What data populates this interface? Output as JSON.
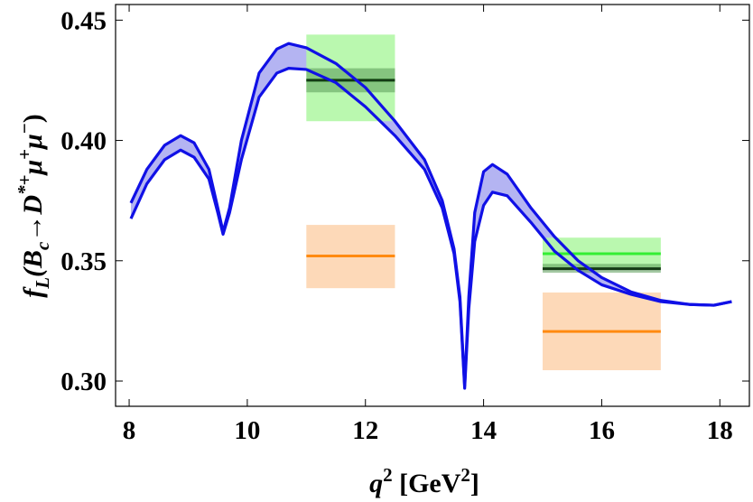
{
  "chart_data": {
    "type": "band",
    "xlabel": [
      "q",
      "2",
      " [GeV",
      "2",
      "]"
    ],
    "ylabel": [
      "f",
      "L",
      "(B",
      "c",
      "→D",
      "*+",
      "μ",
      "+",
      "μ",
      "−",
      ")"
    ],
    "xlim": [
      7.77,
      18.5
    ],
    "ylim": [
      0.2895,
      0.4565
    ],
    "xticks": [
      8,
      10,
      12,
      14,
      16,
      18
    ],
    "yticks": [
      {
        "value": 0.3,
        "label": "0.30"
      },
      0.35,
      {
        "value": 0.4,
        "label": "0.40"
      },
      0.45
    ],
    "band_fill": "#b4b4f2",
    "x": [
      8.03,
      8.3,
      8.6,
      8.87,
      9.1,
      9.35,
      9.5,
      9.59,
      9.7,
      9.9,
      10.2,
      10.5,
      10.7,
      11.0,
      11.5,
      12.0,
      12.5,
      13.0,
      13.3,
      13.5,
      13.6,
      13.68,
      13.75,
      13.85,
      14.0,
      14.15,
      14.4,
      14.8,
      15.2,
      15.6,
      16.0,
      16.5,
      17.0,
      17.5,
      17.9,
      18.2
    ],
    "series": [
      {
        "color": "#1010e6",
        "values": [
          0.374,
          0.388,
          0.398,
          0.402,
          0.399,
          0.388,
          0.372,
          0.362,
          0.372,
          0.4,
          0.428,
          0.438,
          0.4403,
          0.4385,
          0.432,
          0.422,
          0.408,
          0.392,
          0.375,
          0.355,
          0.335,
          0.298,
          0.335,
          0.37,
          0.387,
          0.39,
          0.386,
          0.372,
          0.36,
          0.35,
          0.343,
          0.337,
          0.3335,
          0.3318,
          0.3315,
          0.333
        ]
      },
      {
        "color": "#1010e6",
        "values": [
          0.3675,
          0.382,
          0.392,
          0.396,
          0.393,
          0.384,
          0.37,
          0.361,
          0.37,
          0.392,
          0.418,
          0.428,
          0.43,
          0.4295,
          0.424,
          0.414,
          0.402,
          0.388,
          0.372,
          0.353,
          0.333,
          0.297,
          0.33,
          0.358,
          0.373,
          0.3785,
          0.377,
          0.366,
          0.354,
          0.346,
          0.34,
          0.336,
          0.333,
          0.3318,
          0.3315,
          0.333
        ]
      }
    ],
    "boxes": [
      {
        "x": [
          11,
          12.5
        ],
        "low": 0.408,
        "high": 0.444,
        "center": 0.425,
        "fill": "#b2f7a6",
        "line": "#33ee33"
      },
      {
        "x": [
          11,
          12.5
        ],
        "low": 0.42,
        "high": 0.43,
        "center": 0.425,
        "fill": "#5a9a58",
        "line": "#143a14"
      },
      {
        "x": [
          11,
          12.5
        ],
        "low": 0.3386,
        "high": 0.3649,
        "center": 0.352,
        "fill": "#fdd5b0",
        "line": "#ff8a10"
      },
      {
        "x": [
          15,
          17
        ],
        "low": 0.3469,
        "high": 0.3596,
        "center": 0.3529,
        "fill": "#b2f7a6",
        "line": "#33ee33"
      },
      {
        "x": [
          15,
          17
        ],
        "low": 0.345,
        "high": 0.3487,
        "center": 0.3467,
        "fill": "#5a9a58",
        "line": "#143a14"
      },
      {
        "x": [
          15,
          17
        ],
        "low": 0.3045,
        "high": 0.3368,
        "center": 0.3206,
        "fill": "#fdd5b0",
        "line": "#ff8a10"
      }
    ]
  }
}
